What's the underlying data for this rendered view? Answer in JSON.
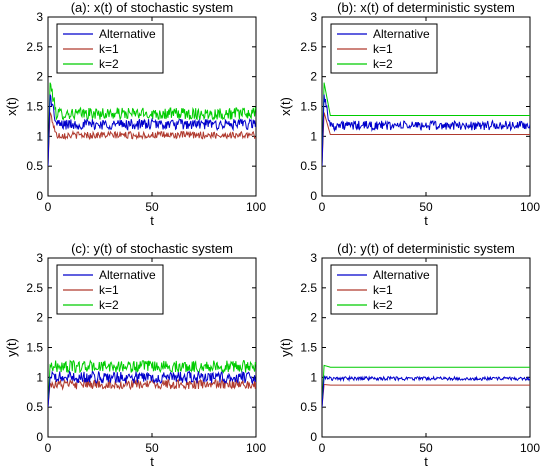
{
  "figure": {
    "series_colors": {
      "Alternative": "#0000cc",
      "k=1": "#b03a2e",
      "k=2": "#00cc00"
    }
  },
  "chart_data": [
    {
      "id": "a",
      "type": "line",
      "title": "(a): x(t) of stochastic system",
      "xlabel": "t",
      "ylabel": "x(t)",
      "xlim": [
        0,
        100
      ],
      "ylim": [
        0,
        3
      ],
      "xticks": [
        "0",
        "50",
        "100"
      ],
      "yticks": [
        "0",
        "0.5",
        "1",
        "1.5",
        "2",
        "2.5",
        "3"
      ],
      "grid": false,
      "legend_position": "top-left",
      "series": [
        {
          "name": "Alternative",
          "start": 0.5,
          "peak": 1.7,
          "level": 1.2,
          "noise": 0.09
        },
        {
          "name": "k=1",
          "start": 0.5,
          "peak": 1.4,
          "level": 1.02,
          "noise": 0.06
        },
        {
          "name": "k=2",
          "start": 0.5,
          "peak": 1.9,
          "level": 1.38,
          "noise": 0.1
        }
      ]
    },
    {
      "id": "b",
      "type": "line",
      "title": "(b): x(t) of deterministic system",
      "xlabel": "t",
      "ylabel": "x(t)",
      "xlim": [
        0,
        100
      ],
      "ylim": [
        0,
        3
      ],
      "xticks": [
        "0",
        "50",
        "100"
      ],
      "yticks": [
        "0",
        "0.5",
        "1",
        "1.5",
        "2",
        "2.5",
        "3"
      ],
      "grid": false,
      "legend_position": "top-left",
      "series": [
        {
          "name": "Alternative",
          "start": 0.5,
          "peak": 1.7,
          "level": 1.18,
          "noise": 0.08
        },
        {
          "name": "k=1",
          "start": 0.5,
          "peak": 1.4,
          "level": 1.03,
          "noise": 0
        },
        {
          "name": "k=2",
          "start": 0.5,
          "peak": 1.9,
          "level": 1.35,
          "noise": 0
        }
      ]
    },
    {
      "id": "c",
      "type": "line",
      "title": "(c): y(t) of stochastic system",
      "xlabel": "t",
      "ylabel": "y(t)",
      "xlim": [
        0,
        100
      ],
      "ylim": [
        0,
        3
      ],
      "xticks": [
        "0",
        "50",
        "100"
      ],
      "yticks": [
        "0",
        "0.5",
        "1",
        "1.5",
        "2",
        "2.5",
        "3"
      ],
      "grid": false,
      "legend_position": "top-left",
      "series": [
        {
          "name": "Alternative",
          "start": 0.5,
          "peak": 1.0,
          "level": 1.0,
          "noise": 0.1
        },
        {
          "name": "k=1",
          "start": 0.5,
          "peak": 0.9,
          "level": 0.88,
          "noise": 0.08
        },
        {
          "name": "k=2",
          "start": 0.5,
          "peak": 1.2,
          "level": 1.18,
          "noise": 0.1
        }
      ]
    },
    {
      "id": "d",
      "type": "line",
      "title": "(d): y(t) of deterministic system",
      "xlabel": "t",
      "ylabel": "y(t)",
      "xlim": [
        0,
        100
      ],
      "ylim": [
        0,
        3
      ],
      "xticks": [
        "0",
        "50",
        "100"
      ],
      "yticks": [
        "0",
        "0.5",
        "1",
        "1.5",
        "2",
        "2.5",
        "3"
      ],
      "grid": false,
      "legend_position": "top-left",
      "series": [
        {
          "name": "Alternative",
          "start": 0.5,
          "peak": 1.0,
          "level": 0.98,
          "noise": 0.03
        },
        {
          "name": "k=1",
          "start": 0.5,
          "peak": 0.88,
          "level": 0.87,
          "noise": 0
        },
        {
          "name": "k=2",
          "start": 0.5,
          "peak": 1.2,
          "level": 1.17,
          "noise": 0
        }
      ]
    }
  ]
}
